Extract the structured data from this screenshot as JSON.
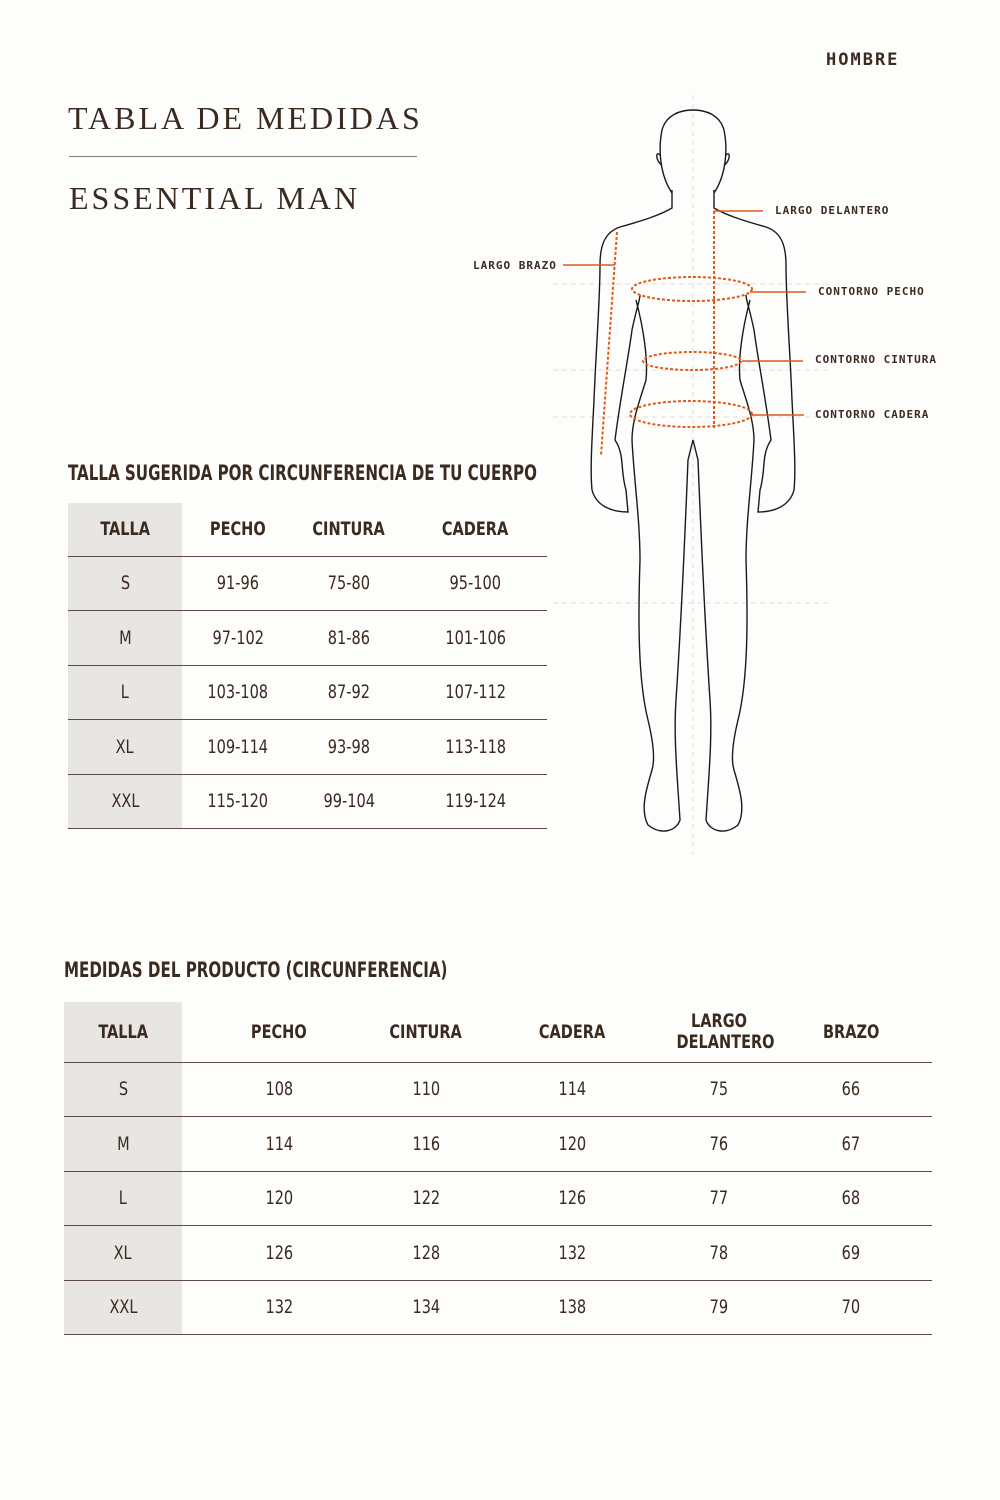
{
  "header": {
    "gender": "HOMBRE",
    "title": "TABLA DE MEDIDAS",
    "subtitle": "ESSENTIAL MAN"
  },
  "figure": {
    "labels": {
      "largo_delantero": "LARGO DELANTERO",
      "largo_brazo": "LARGO BRAZO",
      "contorno_pecho": "CONTORNO PECHO",
      "contorno_cintura": "CONTORNO CINTURA",
      "contorno_cadera": "CONTORNO CADERA"
    },
    "accent_color": "#e05a1a"
  },
  "body_table": {
    "title": "TALLA SUGERIDA POR CIRCUNFERENCIA DE TU CUERPO",
    "headers": [
      "TALLA",
      "PECHO",
      "CINTURA",
      "CADERA"
    ],
    "rows": [
      [
        "S",
        "91-96",
        "75-80",
        "95-100"
      ],
      [
        "M",
        "97-102",
        "81-86",
        "101-106"
      ],
      [
        "L",
        "103-108",
        "87-92",
        "107-112"
      ],
      [
        "XL",
        "109-114",
        "93-98",
        "113-118"
      ],
      [
        "XXL",
        "115-120",
        "99-104",
        "119-124"
      ]
    ]
  },
  "product_table": {
    "title": "MEDIDAS DEL PRODUCTO (CIRCUNFERENCIA)",
    "headers": [
      "TALLA",
      "PECHO",
      "CINTURA",
      "CADERA",
      "LARGO DELANTERO",
      "BRAZO"
    ],
    "rows": [
      [
        "S",
        "108",
        "110",
        "114",
        "75",
        "66"
      ],
      [
        "M",
        "114",
        "116",
        "120",
        "76",
        "67"
      ],
      [
        "L",
        "120",
        "122",
        "126",
        "77",
        "68"
      ],
      [
        "XL",
        "126",
        "128",
        "132",
        "78",
        "69"
      ],
      [
        "XXL",
        "132",
        "134",
        "138",
        "79",
        "70"
      ]
    ]
  }
}
